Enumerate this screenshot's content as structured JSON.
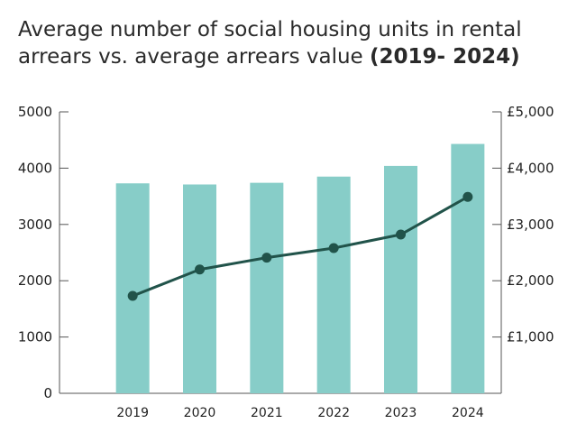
{
  "title": "Average number of social housing units in rental arrears vs. average arrears value",
  "title_suffix": "(2019- 2024)",
  "chart_data": {
    "type": "bar",
    "categories": [
      "2019",
      "2020",
      "2021",
      "2022",
      "2023",
      "2024"
    ],
    "series": [
      {
        "type": "bar",
        "values": [
          3730,
          3710,
          3740,
          3850,
          4040,
          4430
        ],
        "color": "#87cdc8",
        "axis": "left"
      },
      {
        "type": "line",
        "values": [
          1730,
          2200,
          2410,
          2580,
          2820,
          3490
        ],
        "color": "#21534a",
        "axis": "right"
      }
    ],
    "ylim": [
      0,
      5000
    ],
    "yticks": [
      "0",
      "1000",
      "2000",
      "3000",
      "4000",
      "5000"
    ],
    "ylim_right": [
      0,
      5000
    ],
    "yticks_right": [
      "£1,000",
      "£2,000",
      "£3,000",
      "£4,000",
      "£5,000"
    ],
    "yticks_right_values": [
      1000,
      2000,
      3000,
      4000,
      5000
    ],
    "grid": false,
    "legend": "none"
  }
}
